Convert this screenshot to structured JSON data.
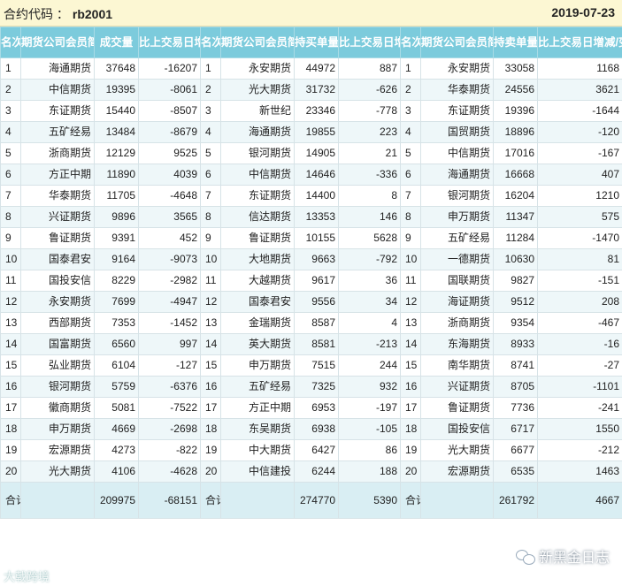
{
  "header": {
    "contract_label": "合约代码 ：",
    "contract_code": "rb2001",
    "date": "2019-07-23"
  },
  "columns": {
    "g1": {
      "rank": "名次",
      "firm": "期货公司会员简称",
      "volume": "成交量",
      "change": "比上交易日增减"
    },
    "g2": {
      "rank": "名次",
      "firm": "期货公司会员简称",
      "volume": "持买单量",
      "change": "比上交易日增减"
    },
    "g3": {
      "rank": "名次",
      "firm": "期货公司会员简称",
      "volume": "持卖单量",
      "change": "比上交易日增减/变化"
    }
  },
  "rows": [
    {
      "rank": "1",
      "g1": {
        "firm": "海通期货",
        "vol": "37648",
        "chg": "-16207"
      },
      "g2": {
        "firm": "永安期货",
        "vol": "44972",
        "chg": "887"
      },
      "g3": {
        "firm": "永安期货",
        "vol": "33058",
        "chg": "1168"
      }
    },
    {
      "rank": "2",
      "g1": {
        "firm": "中信期货",
        "vol": "19395",
        "chg": "-8061"
      },
      "g2": {
        "firm": "光大期货",
        "vol": "31732",
        "chg": "-626"
      },
      "g3": {
        "firm": "华泰期货",
        "vol": "24556",
        "chg": "3621"
      }
    },
    {
      "rank": "3",
      "g1": {
        "firm": "东证期货",
        "vol": "15440",
        "chg": "-8507"
      },
      "g2": {
        "firm": "新世纪",
        "vol": "23346",
        "chg": "-778"
      },
      "g3": {
        "firm": "东证期货",
        "vol": "19396",
        "chg": "-1644"
      }
    },
    {
      "rank": "4",
      "g1": {
        "firm": "五矿经易",
        "vol": "13484",
        "chg": "-8679"
      },
      "g2": {
        "firm": "海通期货",
        "vol": "19855",
        "chg": "223"
      },
      "g3": {
        "firm": "国贸期货",
        "vol": "18896",
        "chg": "-120"
      }
    },
    {
      "rank": "5",
      "g1": {
        "firm": "浙商期货",
        "vol": "12129",
        "chg": "9525"
      },
      "g2": {
        "firm": "银河期货",
        "vol": "14905",
        "chg": "21"
      },
      "g3": {
        "firm": "中信期货",
        "vol": "17016",
        "chg": "-167"
      }
    },
    {
      "rank": "6",
      "g1": {
        "firm": "方正中期",
        "vol": "11890",
        "chg": "4039"
      },
      "g2": {
        "firm": "中信期货",
        "vol": "14646",
        "chg": "-336"
      },
      "g3": {
        "firm": "海通期货",
        "vol": "16668",
        "chg": "407"
      }
    },
    {
      "rank": "7",
      "g1": {
        "firm": "华泰期货",
        "vol": "11705",
        "chg": "-4648"
      },
      "g2": {
        "firm": "东证期货",
        "vol": "14400",
        "chg": "8"
      },
      "g3": {
        "firm": "银河期货",
        "vol": "16204",
        "chg": "1210"
      }
    },
    {
      "rank": "8",
      "g1": {
        "firm": "兴证期货",
        "vol": "9896",
        "chg": "3565"
      },
      "g2": {
        "firm": "信达期货",
        "vol": "13353",
        "chg": "146"
      },
      "g3": {
        "firm": "申万期货",
        "vol": "11347",
        "chg": "575"
      }
    },
    {
      "rank": "9",
      "g1": {
        "firm": "鲁证期货",
        "vol": "9391",
        "chg": "452"
      },
      "g2": {
        "firm": "鲁证期货",
        "vol": "10155",
        "chg": "5628"
      },
      "g3": {
        "firm": "五矿经易",
        "vol": "11284",
        "chg": "-1470"
      }
    },
    {
      "rank": "10",
      "g1": {
        "firm": "国泰君安",
        "vol": "9164",
        "chg": "-9073"
      },
      "g2": {
        "firm": "大地期货",
        "vol": "9663",
        "chg": "-792"
      },
      "g3": {
        "firm": "一德期货",
        "vol": "10630",
        "chg": "81"
      }
    },
    {
      "rank": "11",
      "g1": {
        "firm": "国投安信",
        "vol": "8229",
        "chg": "-2982"
      },
      "g2": {
        "firm": "大越期货",
        "vol": "9617",
        "chg": "36"
      },
      "g3": {
        "firm": "国联期货",
        "vol": "9827",
        "chg": "-151"
      }
    },
    {
      "rank": "12",
      "g1": {
        "firm": "永安期货",
        "vol": "7699",
        "chg": "-4947"
      },
      "g2": {
        "firm": "国泰君安",
        "vol": "9556",
        "chg": "34"
      },
      "g3": {
        "firm": "海证期货",
        "vol": "9512",
        "chg": "208"
      }
    },
    {
      "rank": "13",
      "g1": {
        "firm": "西部期货",
        "vol": "7353",
        "chg": "-1452"
      },
      "g2": {
        "firm": "金瑞期货",
        "vol": "8587",
        "chg": "4"
      },
      "g3": {
        "firm": "浙商期货",
        "vol": "9354",
        "chg": "-467"
      }
    },
    {
      "rank": "14",
      "g1": {
        "firm": "国富期货",
        "vol": "6560",
        "chg": "997"
      },
      "g2": {
        "firm": "英大期货",
        "vol": "8581",
        "chg": "-213"
      },
      "g3": {
        "firm": "东海期货",
        "vol": "8933",
        "chg": "-16"
      }
    },
    {
      "rank": "15",
      "g1": {
        "firm": "弘业期货",
        "vol": "6104",
        "chg": "-127"
      },
      "g2": {
        "firm": "申万期货",
        "vol": "7515",
        "chg": "244"
      },
      "g3": {
        "firm": "南华期货",
        "vol": "8741",
        "chg": "-27"
      }
    },
    {
      "rank": "16",
      "g1": {
        "firm": "银河期货",
        "vol": "5759",
        "chg": "-6376"
      },
      "g2": {
        "firm": "五矿经易",
        "vol": "7325",
        "chg": "932"
      },
      "g3": {
        "firm": "兴证期货",
        "vol": "8705",
        "chg": "-1101"
      }
    },
    {
      "rank": "17",
      "g1": {
        "firm": "徽商期货",
        "vol": "5081",
        "chg": "-7522"
      },
      "g2": {
        "firm": "方正中期",
        "vol": "6953",
        "chg": "-197"
      },
      "g3": {
        "firm": "鲁证期货",
        "vol": "7736",
        "chg": "-241"
      }
    },
    {
      "rank": "18",
      "g1": {
        "firm": "申万期货",
        "vol": "4669",
        "chg": "-2698"
      },
      "g2": {
        "firm": "东吴期货",
        "vol": "6938",
        "chg": "-105"
      },
      "g3": {
        "firm": "国投安信",
        "vol": "6717",
        "chg": "1550"
      }
    },
    {
      "rank": "19",
      "g1": {
        "firm": "宏源期货",
        "vol": "4273",
        "chg": "-822"
      },
      "g2": {
        "firm": "中大期货",
        "vol": "6427",
        "chg": "86"
      },
      "g3": {
        "firm": "光大期货",
        "vol": "6677",
        "chg": "-212"
      }
    },
    {
      "rank": "20",
      "g1": {
        "firm": "光大期货",
        "vol": "4106",
        "chg": "-4628"
      },
      "g2": {
        "firm": "中信建投",
        "vol": "6244",
        "chg": "188"
      },
      "g3": {
        "firm": "宏源期货",
        "vol": "6535",
        "chg": "1463"
      }
    }
  ],
  "totals": {
    "label": "合计",
    "g1": {
      "vol": "209975",
      "chg": "-68151"
    },
    "g2": {
      "vol": "274770",
      "chg": "5390"
    },
    "g3": {
      "vol": "261792",
      "chg": "4667"
    }
  },
  "watermarks": {
    "left": "大戟跨境",
    "right": "新黑金日志"
  }
}
